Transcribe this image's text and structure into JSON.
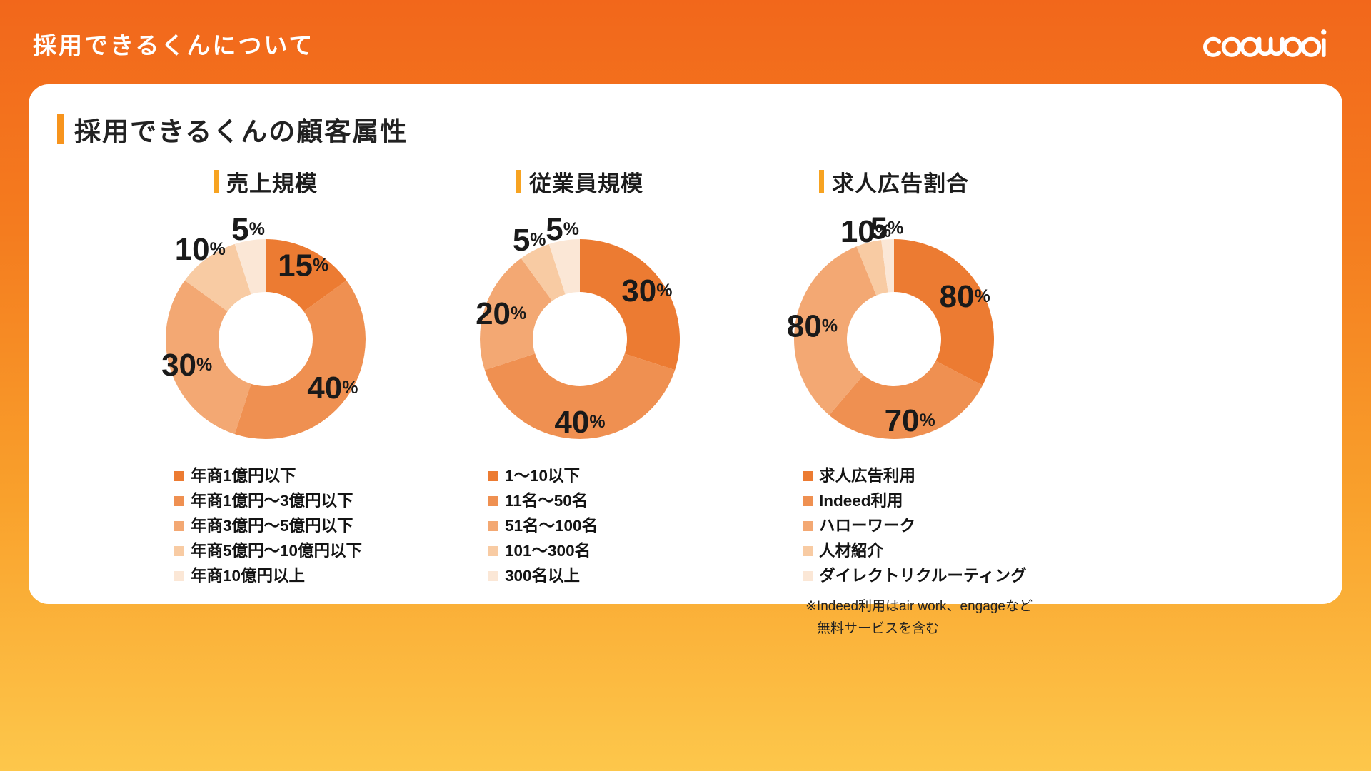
{
  "header": {
    "title": "採用できるくんについて",
    "logo_alt": "coosooi"
  },
  "card": {
    "title": "採用できるくんの顧客属性"
  },
  "colors": {
    "palette": [
      "#EC7B32",
      "#EF9051",
      "#F3A873",
      "#F8CBA3",
      "#FBE7D6"
    ],
    "accent": "#F7941D",
    "label": "#1A1A1A",
    "bg_top": "#F2671B",
    "bg_bottom": "#FDC74B"
  },
  "chart_data": [
    {
      "type": "pie",
      "subtype": "donut",
      "title": "売上規模",
      "unit": "%",
      "legend_position": "bottom",
      "categories": [
        "年商1億円以下",
        "年商1億円〜3億円以下",
        "年商3億円〜5億円以下",
        "年商5億円〜10億円以下",
        "年商10億円以上"
      ],
      "values": [
        15,
        40,
        30,
        10,
        5
      ]
    },
    {
      "type": "pie",
      "subtype": "donut",
      "title": "従業員規模",
      "unit": "%",
      "legend_position": "bottom",
      "categories": [
        "1〜10以下",
        "11名〜50名",
        "51名〜100名",
        "101〜300名",
        "300名以上"
      ],
      "values": [
        30,
        40,
        20,
        5,
        5
      ]
    },
    {
      "type": "pie",
      "subtype": "donut",
      "title": "求人広告割合",
      "unit": "%",
      "legend_position": "bottom",
      "categories": [
        "求人広告利用",
        "Indeed利用",
        "ハローワーク",
        "人材紹介",
        "ダイレクトリクルーティング"
      ],
      "values": [
        80,
        70,
        80,
        10,
        5
      ],
      "notes": [
        "※Indeed利用はair work、engageなど",
        "無料サービスを含む"
      ]
    }
  ]
}
